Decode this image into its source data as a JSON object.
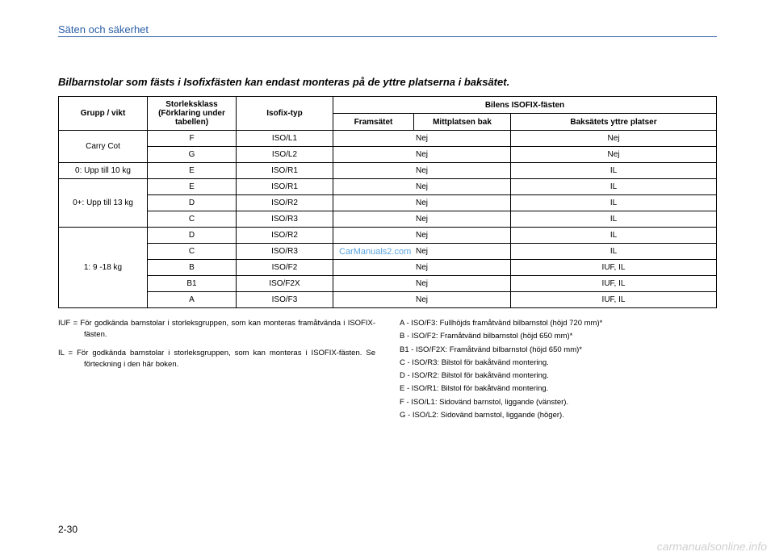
{
  "header": {
    "section_title": "Säten och säkerhet"
  },
  "table": {
    "title": "Bilbarnstolar som fästs i Isofixfästen kan endast monteras på de yttre platserna i baksätet.",
    "headers": {
      "group": "Grupp / vikt",
      "size": "Storleksklass\n(Förklaring under\ntabellen)",
      "isofix": "Isofix-typ",
      "positions_title": "Bilens ISOFIX-fästen",
      "front": "Framsätet",
      "center": "Mittplatsen bak",
      "rear": "Baksätets yttre platser"
    },
    "rows": [
      {
        "group": "Carry Cot",
        "rowspan": 2,
        "size": "F",
        "isofix": "ISO/L1",
        "front_center": "Nej",
        "rear": "Nej"
      },
      {
        "size": "G",
        "isofix": "ISO/L2",
        "front_center": "Nej",
        "rear": "Nej"
      },
      {
        "group": "0: Upp till 10 kg",
        "rowspan": 1,
        "size": "E",
        "isofix": "ISO/R1",
        "front_center": "Nej",
        "rear": "IL"
      },
      {
        "group": "0+: Upp till 13 kg",
        "rowspan": 3,
        "size": "E",
        "isofix": "ISO/R1",
        "front_center": "Nej",
        "rear": "IL"
      },
      {
        "size": "D",
        "isofix": "ISO/R2",
        "front_center": "Nej",
        "rear": "IL"
      },
      {
        "size": "C",
        "isofix": "ISO/R3",
        "front_center": "Nej",
        "rear": "IL"
      },
      {
        "group": "1: 9 -18 kg",
        "rowspan": 5,
        "size": "D",
        "isofix": "ISO/R2",
        "front_center": "Nej",
        "rear": "IL"
      },
      {
        "size": "C",
        "isofix": "ISO/R3",
        "front_center": "Nej",
        "rear": "IL"
      },
      {
        "size": "B",
        "isofix": "ISO/F2",
        "front_center": "Nej",
        "rear": "IUF, IL"
      },
      {
        "size": "B1",
        "isofix": "ISO/F2X",
        "front_center": "Nej",
        "rear": "IUF, IL"
      },
      {
        "size": "A",
        "isofix": "ISO/F3",
        "front_center": "Nej",
        "rear": "IUF, IL"
      }
    ]
  },
  "notes": {
    "left": [
      "IUF = För godkända barnstolar i storleksgruppen, som kan monteras framåtvända i ISOFIX-fästen.",
      "IL = För godkända barnstolar i storleksgruppen, som kan monteras i ISOFIX-fästen. Se förteckning i den här boken."
    ],
    "right": [
      "A - ISO/F3: Fullhöjds framåtvänd bilbarnstol (höjd 720 mm)*",
      "B - ISO/F2: Framåtvänd bilbarnstol (höjd 650 mm)*",
      "B1 - ISO/F2X: Framåtvänd bilbarnstol (höjd 650 mm)*",
      "C - ISO/R3: Bilstol för bakåtvänd montering.",
      "D - ISO/R2: Bilstol för bakåtvänd montering.",
      "E - ISO/R1: Bilstol för bakåtvänd montering.",
      "F - ISO/L1: Sidovänd barnstol, liggande (vänster).",
      "G - ISO/L2: Sidovänd barnstol, liggande (höger)."
    ]
  },
  "page_number": "2-30",
  "watermarks": {
    "center": "CarManuals2.com",
    "footer": "carmanualsonline.info"
  }
}
